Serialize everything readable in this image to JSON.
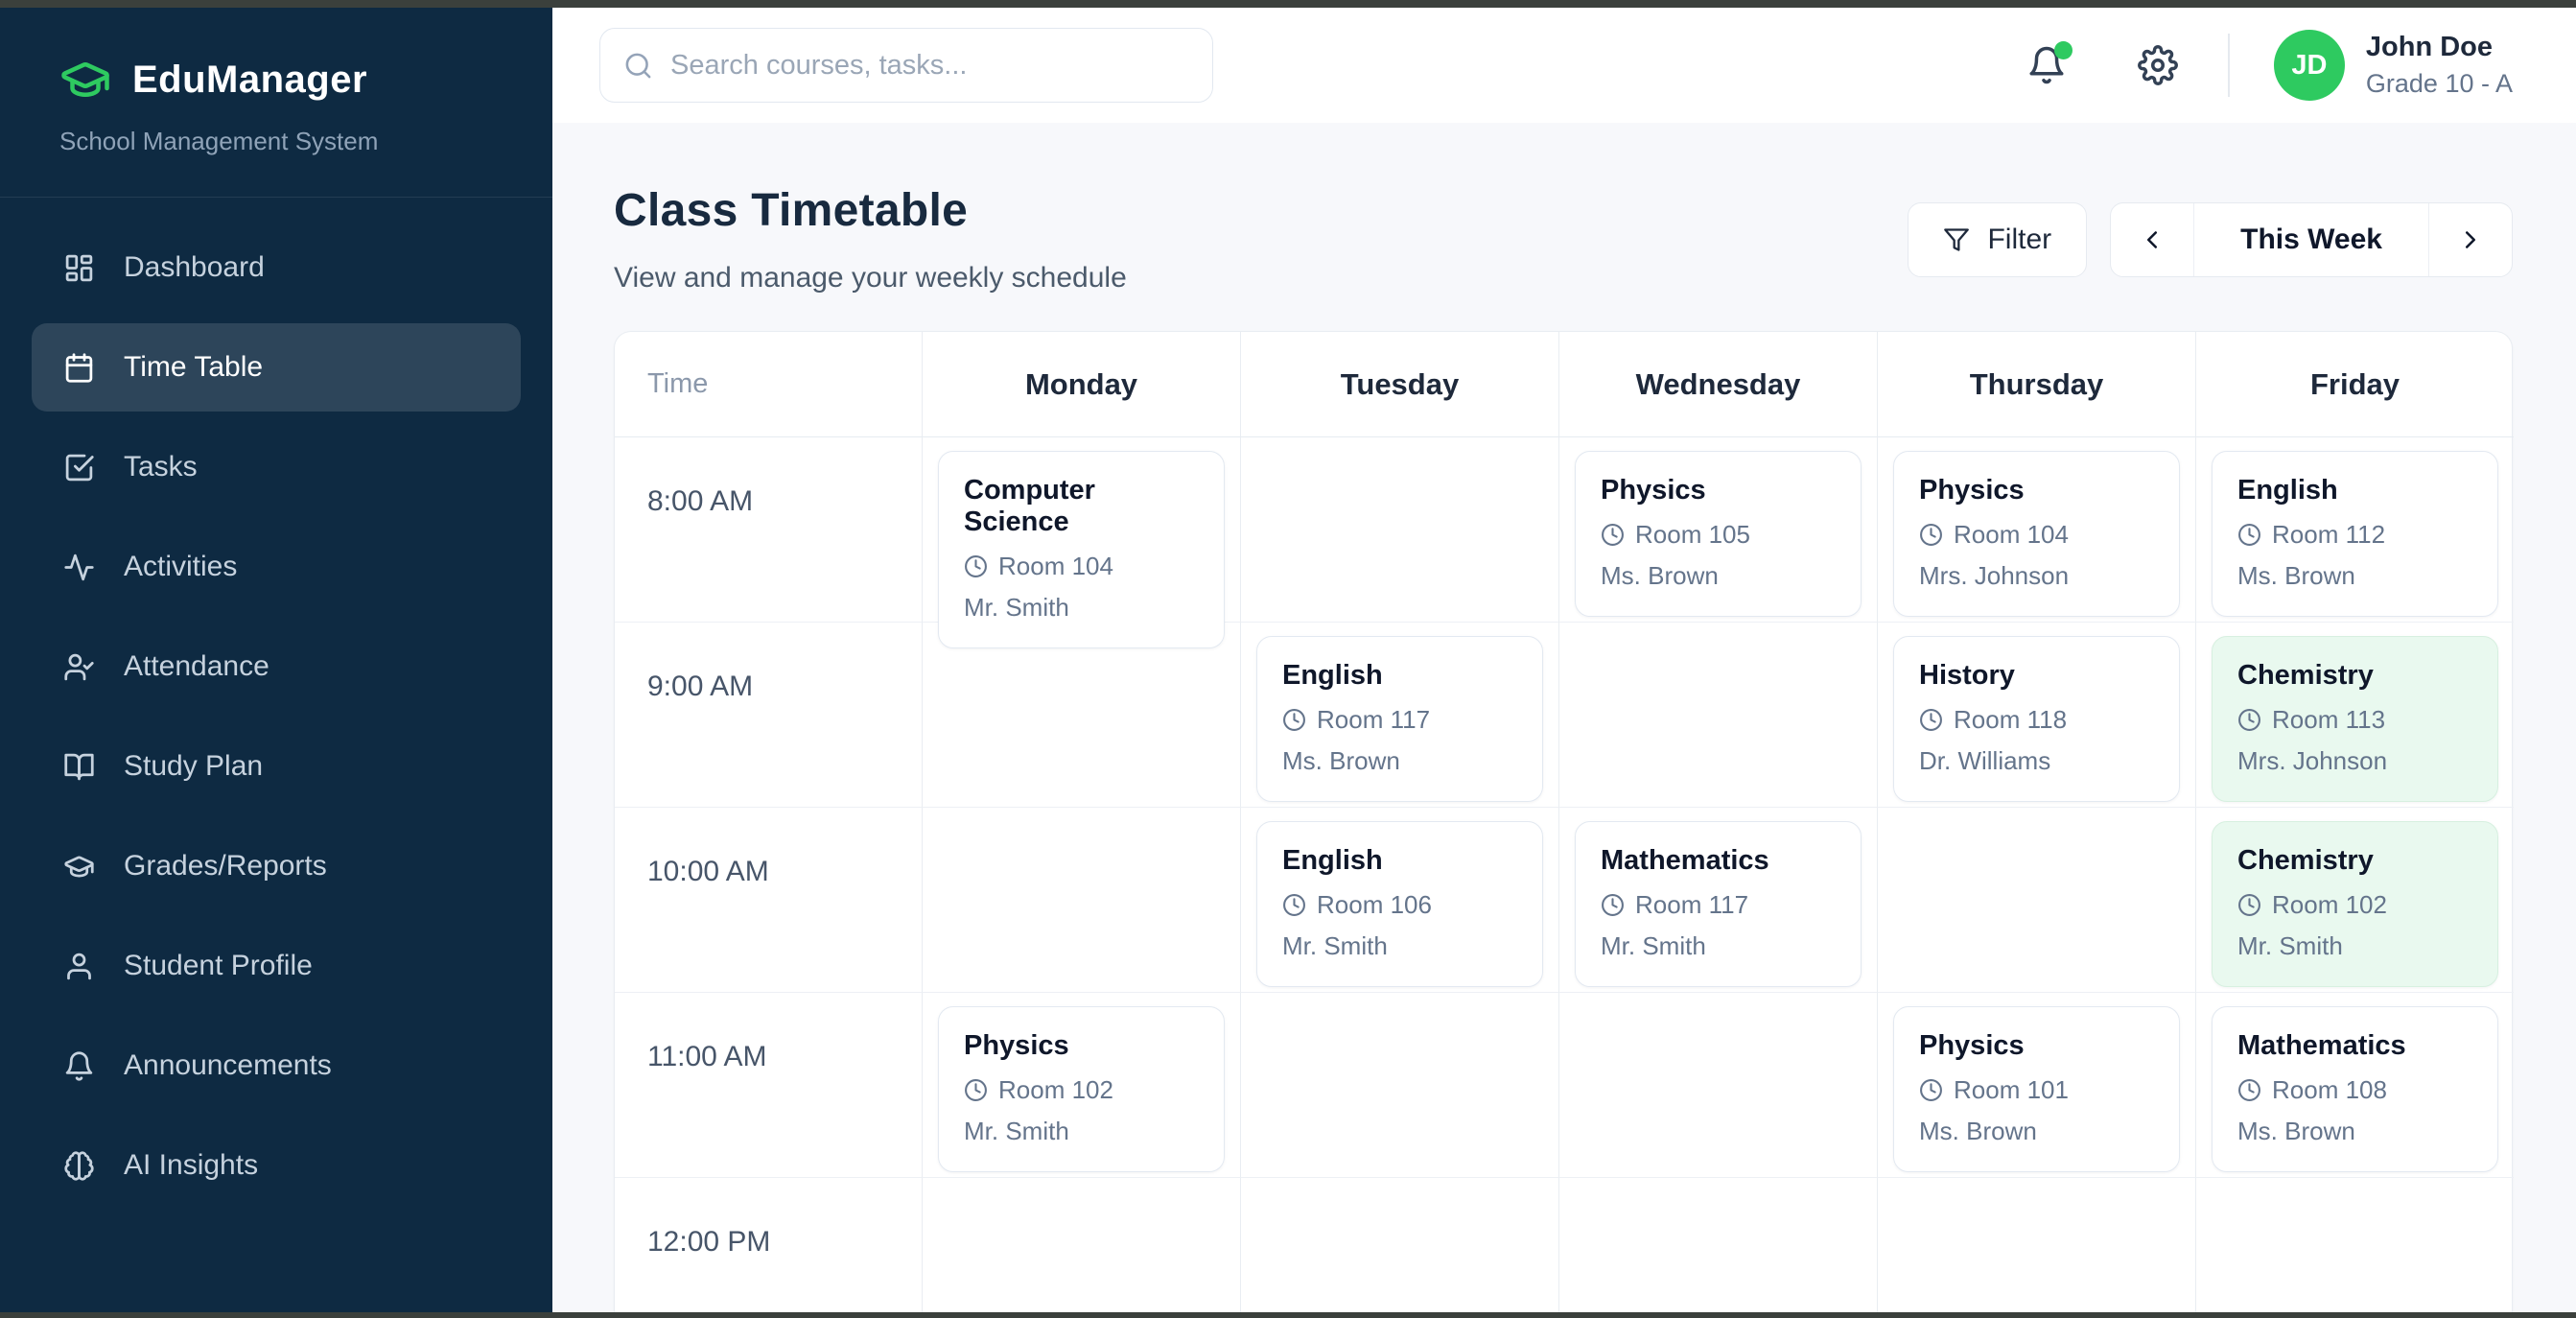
{
  "app": {
    "name": "EduManager",
    "tagline": "School Management System",
    "logo_icon": "graduation-cap-icon"
  },
  "header": {
    "search": {
      "placeholder": "Search courses, tasks...",
      "icon": "search-icon"
    },
    "notifications": {
      "icon": "bell-icon",
      "unread_dot": true
    },
    "settings_icon": "gear-icon",
    "user": {
      "initials": "JD",
      "name": "John Doe",
      "grade": "Grade 10 - A"
    }
  },
  "sidebar": {
    "items": [
      {
        "label": "Dashboard",
        "icon": "dashboard-icon",
        "active": false
      },
      {
        "label": "Time Table",
        "icon": "calendar-icon",
        "active": true
      },
      {
        "label": "Tasks",
        "icon": "check-square-icon",
        "active": false
      },
      {
        "label": "Activities",
        "icon": "activity-icon",
        "active": false
      },
      {
        "label": "Attendance",
        "icon": "user-check-icon",
        "active": false
      },
      {
        "label": "Study Plan",
        "icon": "book-open-icon",
        "active": false
      },
      {
        "label": "Grades/Reports",
        "icon": "graduation-cap-icon",
        "active": false
      },
      {
        "label": "Student Profile",
        "icon": "user-icon",
        "active": false
      },
      {
        "label": "Announcements",
        "icon": "bell-icon",
        "active": false
      },
      {
        "label": "AI Insights",
        "icon": "brain-icon",
        "active": false
      }
    ]
  },
  "page": {
    "title": "Class Timetable",
    "subtitle": "View and manage your weekly schedule",
    "filter_button": {
      "label": "Filter",
      "icon": "funnel-icon"
    },
    "week_nav": {
      "label": "This Week",
      "prev_icon": "chevron-left-icon",
      "next_icon": "chevron-right-icon"
    }
  },
  "timetable": {
    "time_header": "Time",
    "card_icon": "clock-icon",
    "days": [
      "Monday",
      "Tuesday",
      "Wednesday",
      "Thursday",
      "Friday"
    ],
    "rows": [
      {
        "time": "8:00 AM",
        "cells": [
          {
            "subject": "Computer Science",
            "room": "Room 104",
            "teacher": "Mr. Smith",
            "highlighted": false
          },
          null,
          {
            "subject": "Physics",
            "room": "Room 105",
            "teacher": "Ms. Brown",
            "highlighted": false
          },
          {
            "subject": "Physics",
            "room": "Room 104",
            "teacher": "Mrs. Johnson",
            "highlighted": false
          },
          {
            "subject": "English",
            "room": "Room 112",
            "teacher": "Ms. Brown",
            "highlighted": false
          }
        ]
      },
      {
        "time": "9:00 AM",
        "cells": [
          null,
          {
            "subject": "English",
            "room": "Room 117",
            "teacher": "Ms. Brown",
            "highlighted": false
          },
          null,
          {
            "subject": "History",
            "room": "Room 118",
            "teacher": "Dr. Williams",
            "highlighted": false
          },
          {
            "subject": "Chemistry",
            "room": "Room 113",
            "teacher": "Mrs. Johnson",
            "highlighted": true
          }
        ]
      },
      {
        "time": "10:00 AM",
        "cells": [
          null,
          {
            "subject": "English",
            "room": "Room 106",
            "teacher": "Mr. Smith",
            "highlighted": false
          },
          {
            "subject": "Mathematics",
            "room": "Room 117",
            "teacher": "Mr. Smith",
            "highlighted": false
          },
          null,
          {
            "subject": "Chemistry",
            "room": "Room 102",
            "teacher": "Mr. Smith",
            "highlighted": true
          }
        ]
      },
      {
        "time": "11:00 AM",
        "cells": [
          {
            "subject": "Physics",
            "room": "Room 102",
            "teacher": "Mr. Smith",
            "highlighted": false
          },
          null,
          null,
          {
            "subject": "Physics",
            "room": "Room 101",
            "teacher": "Ms. Brown",
            "highlighted": false
          },
          {
            "subject": "Mathematics",
            "room": "Room 108",
            "teacher": "Ms. Brown",
            "highlighted": false
          }
        ]
      },
      {
        "time": "12:00 PM",
        "cells": [
          null,
          null,
          null,
          null,
          null
        ]
      }
    ]
  },
  "colors": {
    "sidebar_bg": "#0e2a42",
    "accent_green": "#2eca60",
    "page_bg": "#f7f8fb",
    "card_border": "#e3e9f1",
    "highlight_card_bg": "#e9f9ef",
    "text_dark": "#0f172a",
    "text_gray": "#64748b"
  }
}
